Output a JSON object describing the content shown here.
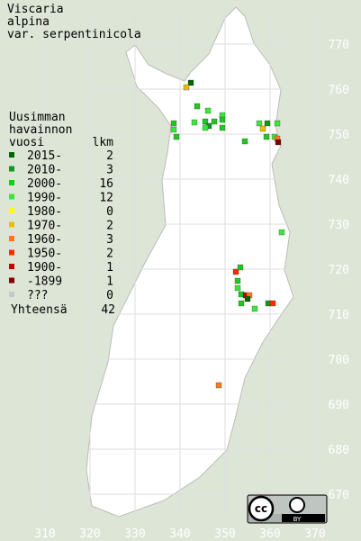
{
  "title": [
    "Viscaria",
    "alpina",
    "var. serpentinicola"
  ],
  "legend": {
    "heading": [
      "Uusimman",
      "havainnon",
      "vuosi"
    ],
    "count_heading": "lkm",
    "rows": [
      {
        "label": "2015-",
        "count": 2,
        "color": "#006400"
      },
      {
        "label": "2010-",
        "count": 3,
        "color": "#14961e"
      },
      {
        "label": "2000-",
        "count": 16,
        "color": "#1ec81e"
      },
      {
        "label": "1990-",
        "count": 12,
        "color": "#3ce63c"
      },
      {
        "label": "1980-",
        "count": 0,
        "color": "#ffff00"
      },
      {
        "label": "1970-",
        "count": 2,
        "color": "#e6c000"
      },
      {
        "label": "1960-",
        "count": 3,
        "color": "#ff7820"
      },
      {
        "label": "1950-",
        "count": 2,
        "color": "#ff2800"
      },
      {
        "label": "1900-",
        "count": 1,
        "color": "#c80000"
      },
      {
        "label": "-1899",
        "count": 1,
        "color": "#800000"
      },
      {
        "label": "???",
        "count": 0,
        "color": "#c8c8c8"
      }
    ],
    "total_label": "Yhteensä",
    "total": 42
  },
  "y_labels": [
    770,
    760,
    750,
    740,
    730,
    720,
    710,
    700,
    690,
    680,
    670
  ],
  "x_labels": [
    310,
    320,
    330,
    340,
    350,
    360,
    370
  ],
  "license": [
    "cc",
    "BY"
  ]
}
